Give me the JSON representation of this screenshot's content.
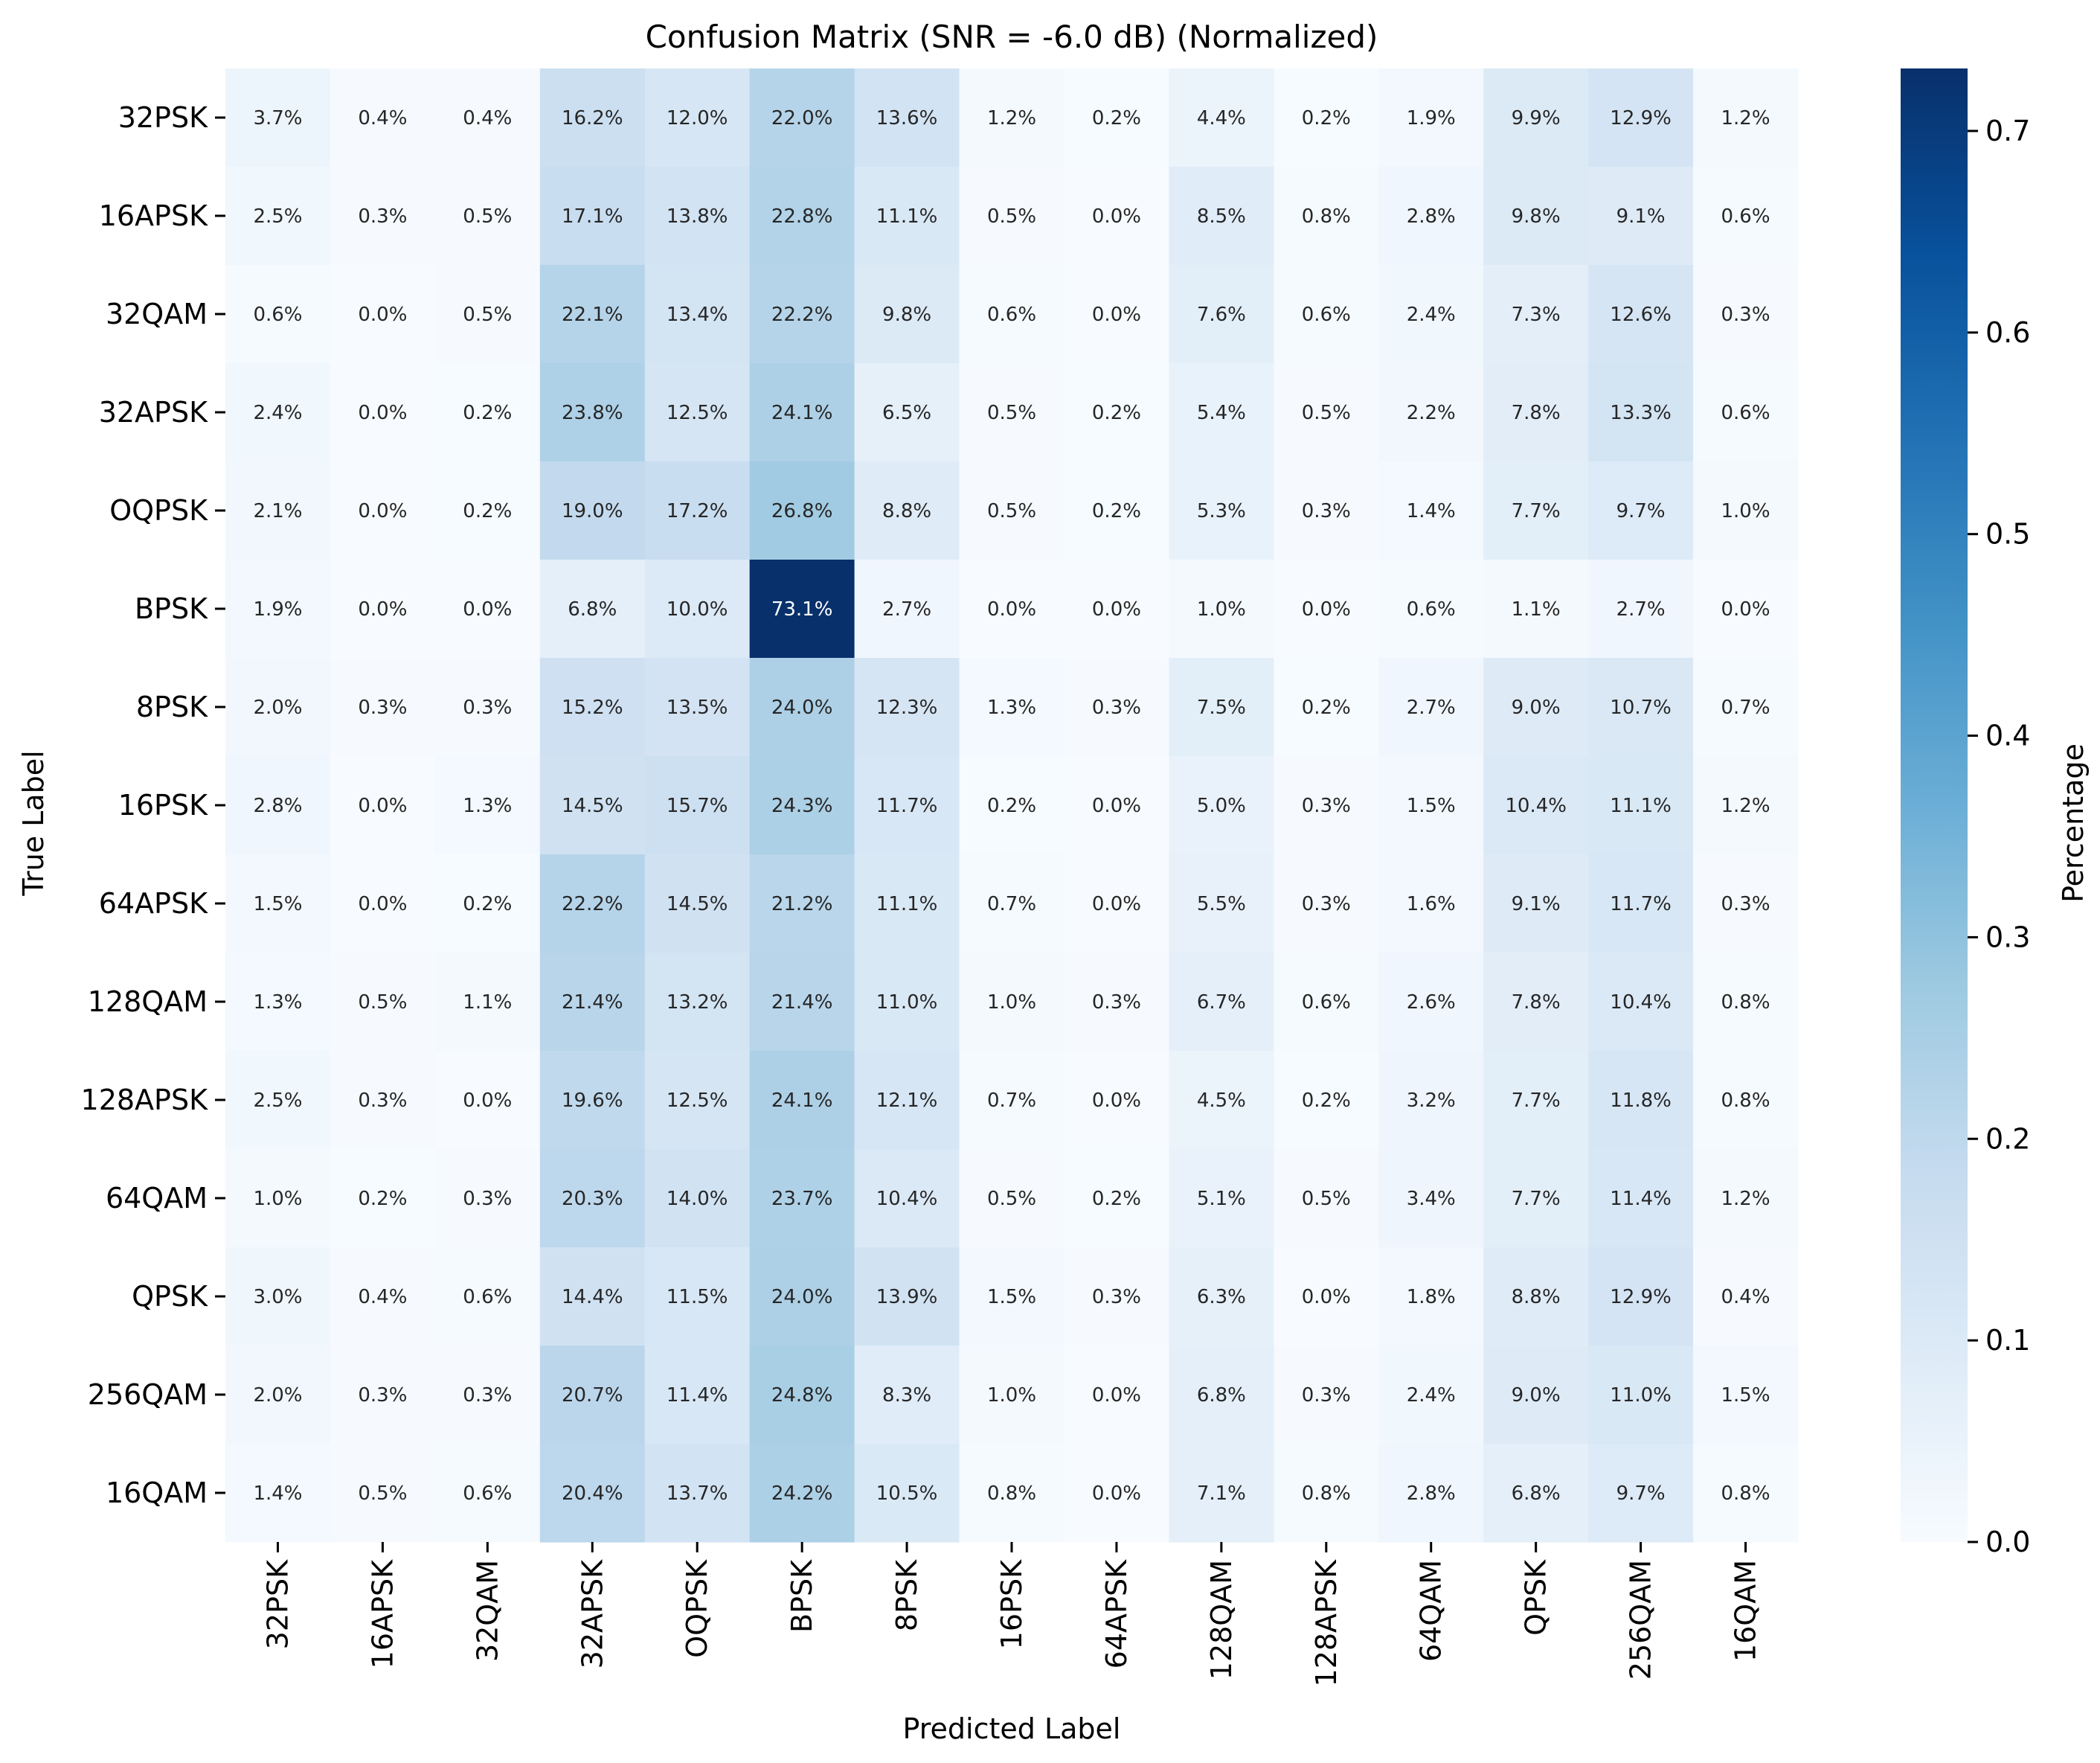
{
  "chart_data": {
    "type": "heatmap",
    "title": "Confusion Matrix (SNR = -6.0 dB) (Normalized)",
    "xlabel": "Predicted Label",
    "ylabel": "True Label",
    "x_categories": [
      "32PSK",
      "16APSK",
      "32QAM",
      "32APSK",
      "OQPSK",
      "BPSK",
      "8PSK",
      "16PSK",
      "64APSK",
      "128QAM",
      "128APSK",
      "64QAM",
      "QPSK",
      "256QAM",
      "16QAM"
    ],
    "y_categories": [
      "32PSK",
      "16APSK",
      "32QAM",
      "32APSK",
      "OQPSK",
      "BPSK",
      "8PSK",
      "16PSK",
      "64APSK",
      "128QAM",
      "128APSK",
      "64QAM",
      "QPSK",
      "256QAM",
      "16QAM"
    ],
    "values": [
      [
        3.7,
        0.4,
        0.4,
        16.2,
        12.0,
        22.0,
        13.6,
        1.2,
        0.2,
        4.4,
        0.2,
        1.9,
        9.9,
        12.9,
        1.2
      ],
      [
        2.5,
        0.3,
        0.5,
        17.1,
        13.8,
        22.8,
        11.1,
        0.5,
        0.0,
        8.5,
        0.8,
        2.8,
        9.8,
        9.1,
        0.6
      ],
      [
        0.6,
        0.0,
        0.5,
        22.1,
        13.4,
        22.2,
        9.8,
        0.6,
        0.0,
        7.6,
        0.6,
        2.4,
        7.3,
        12.6,
        0.3
      ],
      [
        2.4,
        0.0,
        0.2,
        23.8,
        12.5,
        24.1,
        6.5,
        0.5,
        0.2,
        5.4,
        0.5,
        2.2,
        7.8,
        13.3,
        0.6
      ],
      [
        2.1,
        0.0,
        0.2,
        19.0,
        17.2,
        26.8,
        8.8,
        0.5,
        0.2,
        5.3,
        0.3,
        1.4,
        7.7,
        9.7,
        1.0
      ],
      [
        1.9,
        0.0,
        0.0,
        6.8,
        10.0,
        73.1,
        2.7,
        0.0,
        0.0,
        1.0,
        0.0,
        0.6,
        1.1,
        2.7,
        0.0
      ],
      [
        2.0,
        0.3,
        0.3,
        15.2,
        13.5,
        24.0,
        12.3,
        1.3,
        0.3,
        7.5,
        0.2,
        2.7,
        9.0,
        10.7,
        0.7
      ],
      [
        2.8,
        0.0,
        1.3,
        14.5,
        15.7,
        24.3,
        11.7,
        0.2,
        0.0,
        5.0,
        0.3,
        1.5,
        10.4,
        11.1,
        1.2
      ],
      [
        1.5,
        0.0,
        0.2,
        22.2,
        14.5,
        21.2,
        11.1,
        0.7,
        0.0,
        5.5,
        0.3,
        1.6,
        9.1,
        11.7,
        0.3
      ],
      [
        1.3,
        0.5,
        1.1,
        21.4,
        13.2,
        21.4,
        11.0,
        1.0,
        0.3,
        6.7,
        0.6,
        2.6,
        7.8,
        10.4,
        0.8
      ],
      [
        2.5,
        0.3,
        0.0,
        19.6,
        12.5,
        24.1,
        12.1,
        0.7,
        0.0,
        4.5,
        0.2,
        3.2,
        7.7,
        11.8,
        0.8
      ],
      [
        1.0,
        0.2,
        0.3,
        20.3,
        14.0,
        23.7,
        10.4,
        0.5,
        0.2,
        5.1,
        0.5,
        3.4,
        7.7,
        11.4,
        1.2
      ],
      [
        3.0,
        0.4,
        0.6,
        14.4,
        11.5,
        24.0,
        13.9,
        1.5,
        0.3,
        6.3,
        0.0,
        1.8,
        8.8,
        12.9,
        0.4
      ],
      [
        2.0,
        0.3,
        0.3,
        20.7,
        11.4,
        24.8,
        8.3,
        1.0,
        0.0,
        6.8,
        0.3,
        2.4,
        9.0,
        11.0,
        1.5
      ],
      [
        1.4,
        0.5,
        0.6,
        20.4,
        13.7,
        24.2,
        10.5,
        0.8,
        0.0,
        7.1,
        0.8,
        2.8,
        6.8,
        9.7,
        0.8
      ]
    ],
    "value_format": "percent",
    "colormap": "Blues",
    "vmin": 0.0,
    "vmax": 0.731,
    "colorbar": {
      "label": "Percentage",
      "ticks": [
        "0.0",
        "0.1",
        "0.2",
        "0.3",
        "0.4",
        "0.5",
        "0.6",
        "0.7"
      ]
    }
  }
}
